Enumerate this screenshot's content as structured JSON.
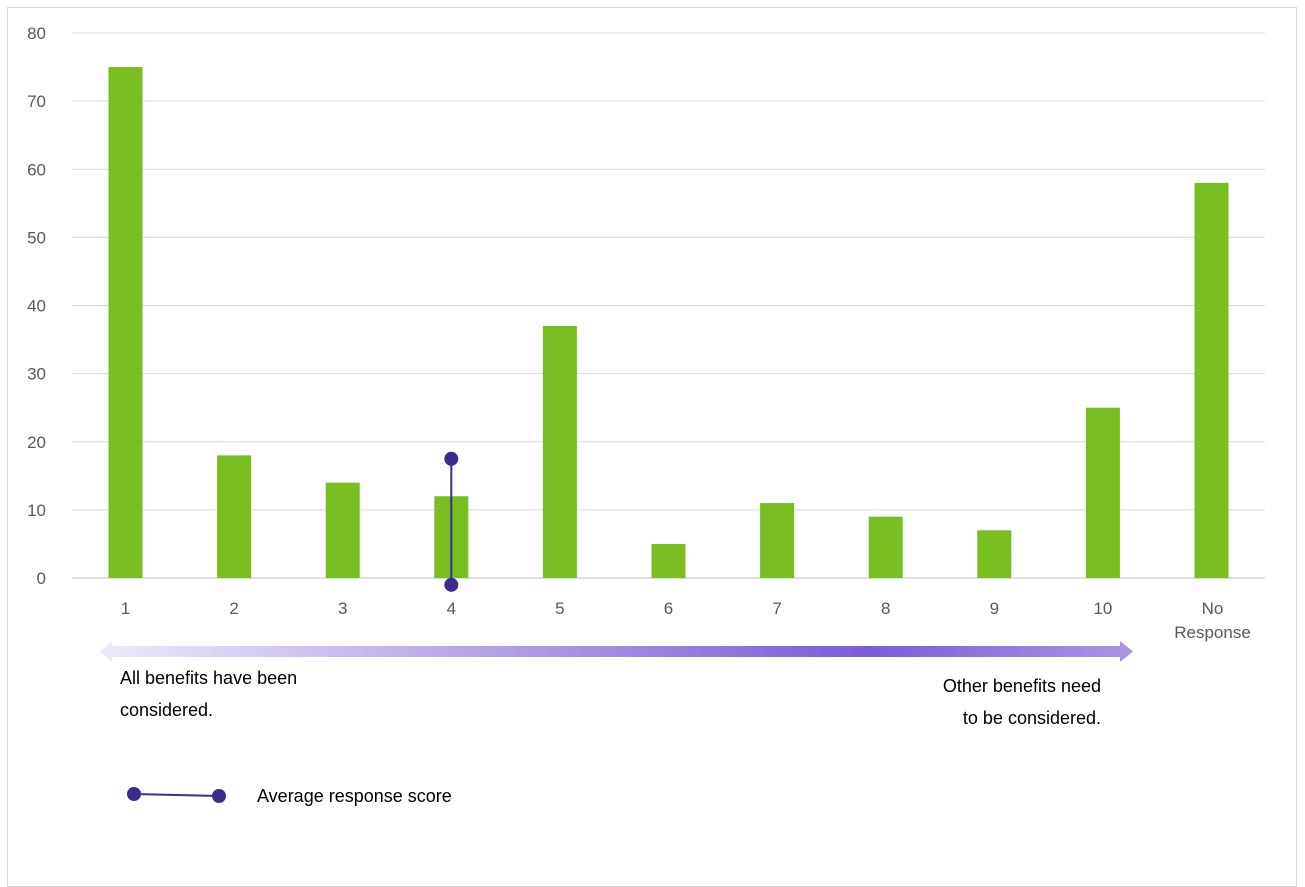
{
  "chart_data": {
    "type": "bar",
    "categories": [
      "1",
      "2",
      "3",
      "4",
      "5",
      "6",
      "7",
      "8",
      "9",
      "10",
      "No Response"
    ],
    "values": [
      75,
      18,
      14,
      12,
      37,
      5,
      11,
      9,
      7,
      25,
      58
    ],
    "ylim": [
      0,
      80
    ],
    "yticks": [
      0,
      10,
      20,
      30,
      40,
      50,
      60,
      70,
      80
    ],
    "grid": true,
    "bar_color": "#78be20",
    "average_marker": {
      "label": "Average response score",
      "x_category": "4",
      "y_range": [
        -1,
        17.5
      ],
      "color": "#3d2b8f"
    },
    "scale_arrow": {
      "left_note": [
        "All benefits have been",
        "considered."
      ],
      "right_note": [
        "Other benefits need",
        "to be considered."
      ],
      "gradient_colors": [
        "#ece8f8",
        "#7c5cd6",
        "#a993e6"
      ]
    },
    "legend": {
      "placement": "bottom-left",
      "label": "Average response score"
    }
  }
}
